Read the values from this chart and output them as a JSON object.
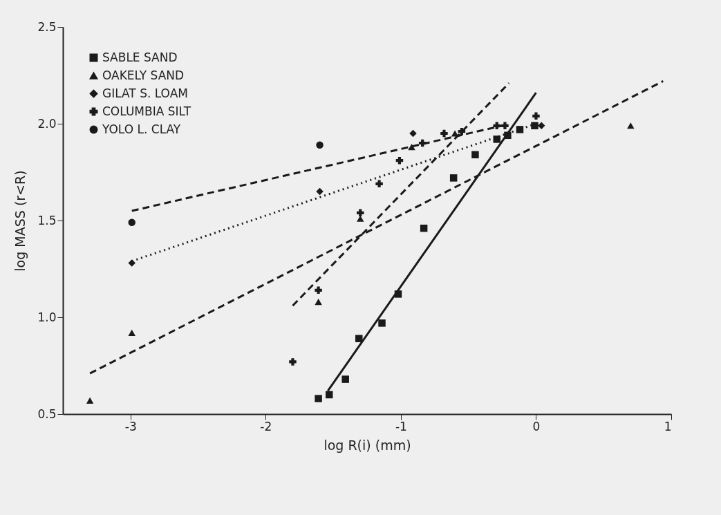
{
  "chart_data": {
    "type": "scatter",
    "xlabel": "log R(i) (mm)",
    "ylabel": "log MASS (r<R)",
    "xlim": [
      -3.5,
      1.0
    ],
    "ylim": [
      0.5,
      2.5
    ],
    "xticks": [
      -3,
      -2,
      -1,
      0,
      1
    ],
    "yticks": [
      0.5,
      {
        "value": 1,
        "label": "1.0"
      },
      1.5,
      {
        "value": 2,
        "label": "2.0"
      },
      2.5
    ],
    "grid": false,
    "legend": "top left",
    "series": [
      {
        "name": "SABLE SAND",
        "color": "#1a1a1a",
        "marker": "square",
        "x": [
          -1.61,
          -1.53,
          -1.41,
          -1.31,
          -1.14,
          -1.02,
          -0.83,
          -0.61,
          -0.45,
          -0.29,
          -0.21,
          -0.12,
          -0.01
        ],
        "values": [
          0.58,
          0.6,
          0.68,
          0.89,
          0.97,
          1.12,
          1.46,
          1.72,
          1.84,
          1.92,
          1.94,
          1.97,
          1.99
        ]
      },
      {
        "name": "OAKELY SAND",
        "color": "#1a1a1a",
        "marker": "triangle",
        "x": [
          -3.3,
          -2.99,
          -1.61,
          -1.3,
          -0.92,
          -0.6,
          0.7
        ],
        "values": [
          0.57,
          0.92,
          1.08,
          1.51,
          1.88,
          1.95,
          1.99
        ]
      },
      {
        "name": "GILAT S. LOAM",
        "color": "#1a1a1a",
        "marker": "diamond",
        "x": [
          -2.99,
          -1.6,
          -0.91,
          0.04
        ],
        "values": [
          1.28,
          1.65,
          1.95,
          1.99
        ]
      },
      {
        "name": "COLUMBIA SILT",
        "color": "#1a1a1a",
        "marker": "cross",
        "x": [
          -1.8,
          -1.61,
          -1.3,
          -1.16,
          -1.01,
          -0.84,
          -0.68,
          -0.55,
          -0.29,
          -0.23,
          0.0
        ],
        "values": [
          0.77,
          1.14,
          1.54,
          1.69,
          1.81,
          1.9,
          1.95,
          1.96,
          1.99,
          1.99,
          2.04
        ]
      },
      {
        "name": "YOLO L. CLAY",
        "color": "#1a1a1a",
        "marker": "circle",
        "x": [
          -2.99,
          -1.6
        ],
        "values": [
          1.49,
          1.89
        ]
      },
      {
        "type": "line",
        "color": "#1a1a1a",
        "line_style": "solid",
        "x": [
          -1.54,
          0.0
        ],
        "values": [
          0.62,
          2.16
        ]
      },
      {
        "type": "line",
        "color": "#1a1a1a",
        "line_style": "dashed",
        "x": [
          -3.3,
          0.94
        ],
        "values": [
          0.71,
          2.22
        ]
      },
      {
        "type": "line",
        "color": "#1a1a1a",
        "line_style": "dotted",
        "x": [
          -2.99,
          0.0
        ],
        "values": [
          1.29,
          2.0
        ]
      },
      {
        "type": "line",
        "color": "#1a1a1a",
        "line_style": "dashed",
        "x": [
          -1.8,
          -0.2
        ],
        "values": [
          1.06,
          2.21
        ]
      },
      {
        "type": "line",
        "color": "#1a1a1a",
        "line_style": "dashed",
        "x": [
          -2.99,
          -0.25
        ],
        "values": [
          1.55,
          1.99
        ]
      }
    ]
  }
}
